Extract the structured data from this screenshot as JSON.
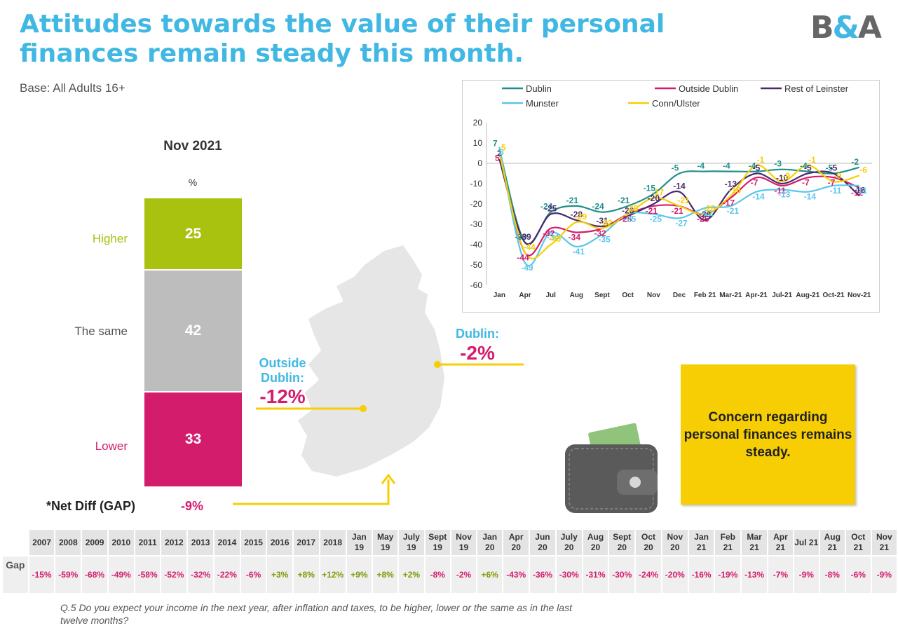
{
  "header": {
    "title": "Attitudes towards the value of their personal finances remain steady this month.",
    "base": "Base: All Adults 16+",
    "logo": "B&A"
  },
  "stack": {
    "period": "Nov 2021",
    "unit": "%",
    "segments": [
      {
        "label": "Higher",
        "value": 25,
        "color": "#a8c20f"
      },
      {
        "label": "The same",
        "value": 42,
        "color": "#bdbdbd"
      },
      {
        "label": "Lower",
        "value": 33,
        "color": "#d41c6d"
      }
    ],
    "net_label": "*Net Diff (GAP)",
    "net_value": "-9%"
  },
  "callouts": {
    "outside_dublin_label": "Outside Dublin:",
    "outside_dublin_value": "-12%",
    "dublin_label": "Dublin:",
    "dublin_value": "-2%"
  },
  "concern": "Concern regarding personal finances remains steady.",
  "gap_table": {
    "row_label": "Gap",
    "periods": [
      "2007",
      "2008",
      "2009",
      "2010",
      "2011",
      "2012",
      "2013",
      "2014",
      "2015",
      "2016",
      "2017",
      "2018",
      "Jan 19",
      "May 19",
      "July 19",
      "Sept 19",
      "Nov 19",
      "Jan 20",
      "Apr 20",
      "Jun 20",
      "July 20",
      "Aug 20",
      "Sept 20",
      "Oct 20",
      "Nov 20",
      "Jan 21",
      "Feb 21",
      "Mar 21",
      "Apr 21",
      "Jul 21",
      "Aug 21",
      "Oct 21",
      "Nov 21"
    ],
    "values": [
      "-15%",
      "-59%",
      "-68%",
      "-49%",
      "-58%",
      "-52%",
      "-32%",
      "-22%",
      "-6%",
      "+3%",
      "+8%",
      "+12%",
      "+9%",
      "+8%",
      "+2%",
      "-8%",
      "-2%",
      "+6%",
      "-43%",
      "-36%",
      "-30%",
      "-31%",
      "-30%",
      "-24%",
      "-20%",
      "-16%",
      "-19%",
      "-13%",
      "-7%",
      "-9%",
      "-8%",
      "-6%",
      "-9%"
    ]
  },
  "footnote": "Q.5  Do you expect your income in the next year, after inflation and taxes, to be higher, lower or the same as in the last twelve months?",
  "chart_data": {
    "type": "line",
    "categories": [
      "Jan",
      "Apr",
      "Jul",
      "Aug",
      "Sept",
      "Oct",
      "Nov",
      "Dec",
      "Feb 21",
      "Mar-21",
      "Apr-21",
      "Jul-21",
      "Aug-21",
      "Oct-21",
      "Nov-21"
    ],
    "ylim": [
      -60,
      20
    ],
    "yticks": [
      20,
      10,
      0,
      -10,
      -20,
      -30,
      -40,
      -50,
      -60
    ],
    "legend_position": "top",
    "grid": false,
    "series": [
      {
        "name": "Dublin",
        "color": "#1f8f8a",
        "values": [
          7,
          -39,
          -24,
          -21,
          -24,
          -21,
          -15,
          -5,
          -4,
          -4,
          -4,
          -3,
          -4,
          -5,
          -2
        ]
      },
      {
        "name": "Outside Dublin",
        "color": "#d41c6d",
        "values": [
          5,
          -44,
          -32,
          -34,
          -32,
          -25,
          -21,
          -21,
          -25,
          -17,
          -7,
          -11,
          -7,
          -7,
          -12
        ]
      },
      {
        "name": "Rest of Leinster",
        "color": "#4a2a6e",
        "values": [
          2,
          -39,
          -25,
          -28,
          -31,
          -26,
          -20,
          -14,
          -28,
          -13,
          -5,
          -10,
          -5,
          -5,
          -16
        ]
      },
      {
        "name": "Munster",
        "color": "#5bc6ea",
        "values": [
          8,
          -49,
          -34,
          -41,
          -35,
          -25,
          -25,
          -27,
          -22,
          -21,
          -14,
          -13,
          -14,
          -11,
          -11
        ]
      },
      {
        "name": "Conn/Ulster",
        "color": "#f7ce04",
        "values": [
          5,
          -44,
          -40,
          -29,
          -32,
          -25,
          -17,
          -21,
          -25,
          -16,
          -1,
          -9,
          -1,
          -9,
          -6
        ]
      }
    ]
  }
}
